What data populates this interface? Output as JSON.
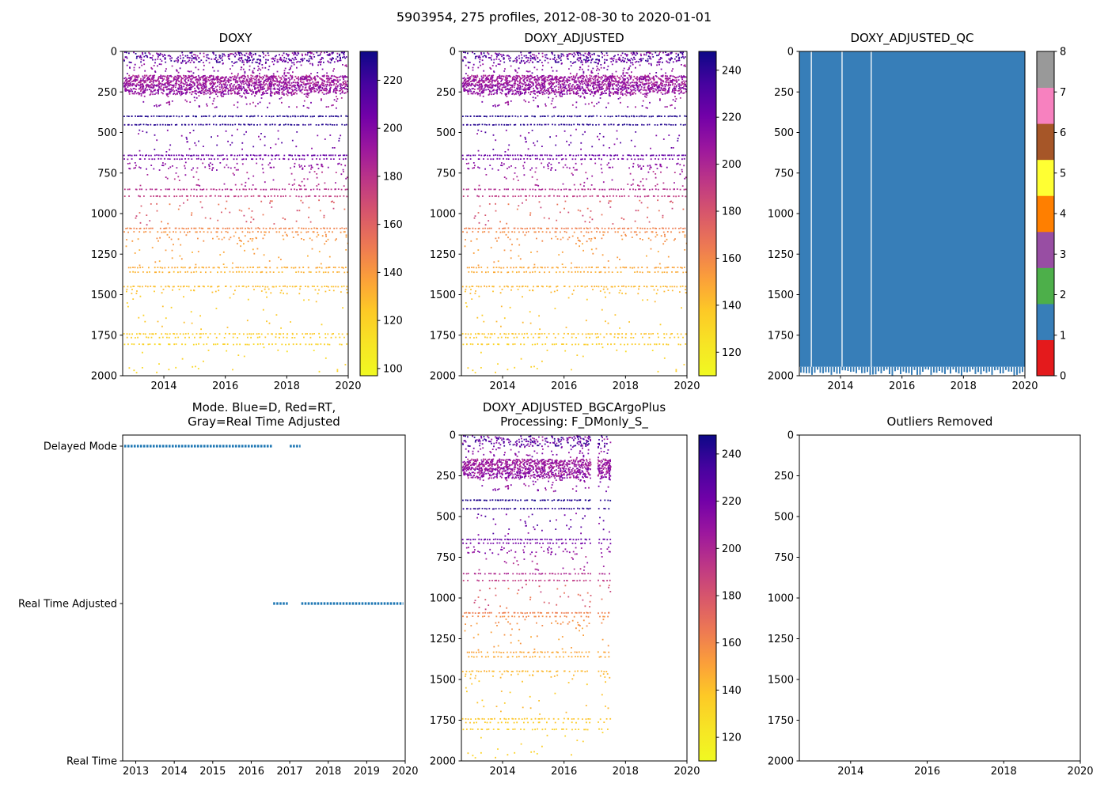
{
  "figure": {
    "title": "5903954, 275 profiles, 2012-08-30 to 2020-01-01"
  },
  "colormap": {
    "name": "plasma_reversed_high_is_dark",
    "stops": [
      {
        "t": 0.0,
        "color": "#0d0887"
      },
      {
        "t": 0.1,
        "color": "#46039f"
      },
      {
        "t": 0.2,
        "color": "#7201a8"
      },
      {
        "t": 0.3,
        "color": "#9c179e"
      },
      {
        "t": 0.4,
        "color": "#bd3786"
      },
      {
        "t": 0.5,
        "color": "#d8576b"
      },
      {
        "t": 0.6,
        "color": "#ed7953"
      },
      {
        "t": 0.7,
        "color": "#fb9f3a"
      },
      {
        "t": 0.8,
        "color": "#fdc926"
      },
      {
        "t": 0.9,
        "color": "#f7e425"
      },
      {
        "t": 1.0,
        "color": "#f0f921"
      }
    ]
  },
  "qc_palette": [
    "#e41a1c",
    "#377eb8",
    "#4daf4a",
    "#984ea3",
    "#ff7f00",
    "#ffff33",
    "#a65628",
    "#f781bf",
    "#999999"
  ],
  "bands": [
    {
      "type": "cloud",
      "depth": [
        3,
        70
      ],
      "value": 208,
      "value_jitter": 20,
      "count": 380
    },
    {
      "type": "cloud",
      "depth": [
        70,
        140
      ],
      "value": 200,
      "value_jitter": 12,
      "count": 110
    },
    {
      "type": "cloud",
      "depth": [
        148,
        210
      ],
      "value": 189,
      "value_jitter": 10,
      "count": 850
    },
    {
      "type": "cloud",
      "depth": [
        205,
        265
      ],
      "value": 193,
      "value_jitter": 12,
      "count": 750
    },
    {
      "type": "cloud",
      "depth": [
        268,
        350
      ],
      "value": 195,
      "value_jitter": 12,
      "count": 90
    },
    {
      "type": "line",
      "depth": 400,
      "value": 228,
      "count": 115
    },
    {
      "type": "line",
      "depth": 452,
      "value": 226,
      "count": 95
    },
    {
      "type": "cloud",
      "depth": [
        480,
        620
      ],
      "value": 207,
      "value_jitter": 14,
      "count": 60
    },
    {
      "type": "line",
      "depth": 641,
      "value": 209,
      "count": 100
    },
    {
      "type": "line",
      "depth": 664,
      "value": 203,
      "count": 70
    },
    {
      "type": "cloud",
      "depth": [
        685,
        732
      ],
      "value": 196,
      "value_jitter": 7,
      "count": 85
    },
    {
      "type": "cloud",
      "depth": [
        740,
        830
      ],
      "value": 187,
      "value_jitter": 9,
      "count": 55
    },
    {
      "type": "line",
      "depth": 851,
      "value": 182,
      "count": 90
    },
    {
      "type": "line",
      "depth": 893,
      "value": 176,
      "count": 75
    },
    {
      "type": "cloud",
      "depth": [
        915,
        1070
      ],
      "value": 160,
      "value_jitter": 13,
      "count": 65
    },
    {
      "type": "line",
      "depth": 1091,
      "value": 147,
      "count": 95
    },
    {
      "type": "line",
      "depth": 1114,
      "value": 143,
      "count": 65
    },
    {
      "type": "cloud",
      "depth": [
        1130,
        1172
      ],
      "value": 141,
      "value_jitter": 4,
      "count": 55
    },
    {
      "type": "cloud",
      "depth": [
        1180,
        1320
      ],
      "value": 136,
      "value_jitter": 5,
      "count": 40
    },
    {
      "type": "line",
      "depth": 1333,
      "value": 133,
      "count": 85
    },
    {
      "type": "line",
      "depth": 1361,
      "value": 131,
      "count": 65
    },
    {
      "type": "line",
      "depth": 1450,
      "value": 128,
      "count": 90
    },
    {
      "type": "cloud",
      "depth": [
        1465,
        1497
      ],
      "value": 127,
      "value_jitter": 3,
      "count": 40
    },
    {
      "type": "cloud",
      "depth": [
        1510,
        1725
      ],
      "value": 124,
      "value_jitter": 4,
      "count": 35
    },
    {
      "type": "line",
      "depth": 1742,
      "value": 123,
      "count": 85
    },
    {
      "type": "line",
      "depth": 1764,
      "value": 121,
      "count": 50
    },
    {
      "type": "line",
      "depth": 1806,
      "value": 119,
      "count": 70
    },
    {
      "type": "cloud",
      "depth": [
        1825,
        1985
      ],
      "value": 117,
      "value_jitter": 4,
      "count": 28
    }
  ],
  "chart_data": [
    {
      "type": "scatter",
      "title_lines": [
        "DOXY"
      ],
      "x_range": [
        2012.66,
        2020
      ],
      "x_ticks": [
        2014,
        2016,
        2018,
        2020
      ],
      "x_data_range": [
        2012.68,
        2019.97
      ],
      "x_data_gaps": [],
      "y_range": [
        0,
        2000
      ],
      "y_ticks": [
        0,
        250,
        500,
        750,
        1000,
        1250,
        1500,
        1750,
        2000
      ],
      "value_offset": 0,
      "colorbar": {
        "type": "gradient",
        "min": 97,
        "max": 232,
        "ticks": [
          100,
          120,
          140,
          160,
          180,
          200,
          220
        ]
      }
    },
    {
      "type": "scatter",
      "title_lines": [
        "DOXY_ADJUSTED"
      ],
      "x_range": [
        2012.66,
        2020
      ],
      "x_ticks": [
        2014,
        2016,
        2018,
        2020
      ],
      "x_data_range": [
        2012.68,
        2019.97
      ],
      "x_data_gaps": [],
      "y_range": [
        0,
        2000
      ],
      "y_ticks": [
        0,
        250,
        500,
        750,
        1000,
        1250,
        1500,
        1750,
        2000
      ],
      "value_offset": 16,
      "colorbar": {
        "type": "gradient",
        "min": 110,
        "max": 248,
        "ticks": [
          120,
          140,
          160,
          180,
          200,
          220,
          240
        ]
      }
    },
    {
      "type": "qc",
      "title_lines": [
        "DOXY_ADJUSTED_QC"
      ],
      "x_range": [
        2012.66,
        2020
      ],
      "x_ticks": [
        2014,
        2016,
        2018,
        2020
      ],
      "y_range": [
        0,
        2000
      ],
      "y_ticks": [
        0,
        250,
        500,
        750,
        1000,
        1250,
        1500,
        1750,
        2000
      ],
      "fill_value": 1,
      "solid_depth": 1945,
      "white_gap_years": [
        2013.05,
        2014.05,
        2015.0
      ],
      "colorbar": {
        "type": "discrete",
        "ticks": [
          0,
          1,
          2,
          3,
          4,
          5,
          6,
          7,
          8
        ]
      }
    },
    {
      "type": "mode",
      "title_lines": [
        "Mode. Blue=D, Red=RT,",
        "Gray=Real Time Adjusted"
      ],
      "x_range": [
        2012.66,
        2020
      ],
      "x_ticks": [
        2013,
        2014,
        2015,
        2016,
        2017,
        2018,
        2019,
        2020
      ],
      "categories": [
        "Delayed Mode",
        "Real Time Adjusted",
        "Real Time"
      ],
      "dot_color": "#1f77b4",
      "segments": [
        {
          "category": "Delayed Mode",
          "start": 2012.7,
          "end": 2016.55
        },
        {
          "category": "Delayed Mode",
          "start": 2017.0,
          "end": 2017.28
        },
        {
          "category": "Real Time Adjusted",
          "start": 2016.57,
          "end": 2016.95
        },
        {
          "category": "Real Time Adjusted",
          "start": 2017.3,
          "end": 2019.95
        }
      ]
    },
    {
      "type": "scatter",
      "title_lines": [
        "DOXY_ADJUSTED_BGCArgoPlus",
        "Processing: F_DMonly_S_"
      ],
      "x_range": [
        2012.66,
        2020
      ],
      "x_ticks": [
        2014,
        2016,
        2018,
        2020
      ],
      "x_data_range": [
        2012.68,
        2017.5
      ],
      "x_data_gaps": [
        [
          2016.85,
          2017.08
        ]
      ],
      "y_range": [
        0,
        2000
      ],
      "y_ticks": [
        0,
        250,
        500,
        750,
        1000,
        1250,
        1500,
        1750,
        2000
      ],
      "value_offset": 16,
      "colorbar": {
        "type": "gradient",
        "min": 110,
        "max": 248,
        "ticks": [
          120,
          140,
          160,
          180,
          200,
          220,
          240
        ]
      }
    },
    {
      "type": "empty",
      "title_lines": [
        "Outliers Removed"
      ],
      "x_range": [
        2012.66,
        2020
      ],
      "x_ticks": [
        2014,
        2016,
        2018,
        2020
      ],
      "y_range": [
        0,
        2000
      ],
      "y_ticks": [
        0,
        250,
        500,
        750,
        1000,
        1250,
        1500,
        1750,
        2000
      ]
    }
  ]
}
